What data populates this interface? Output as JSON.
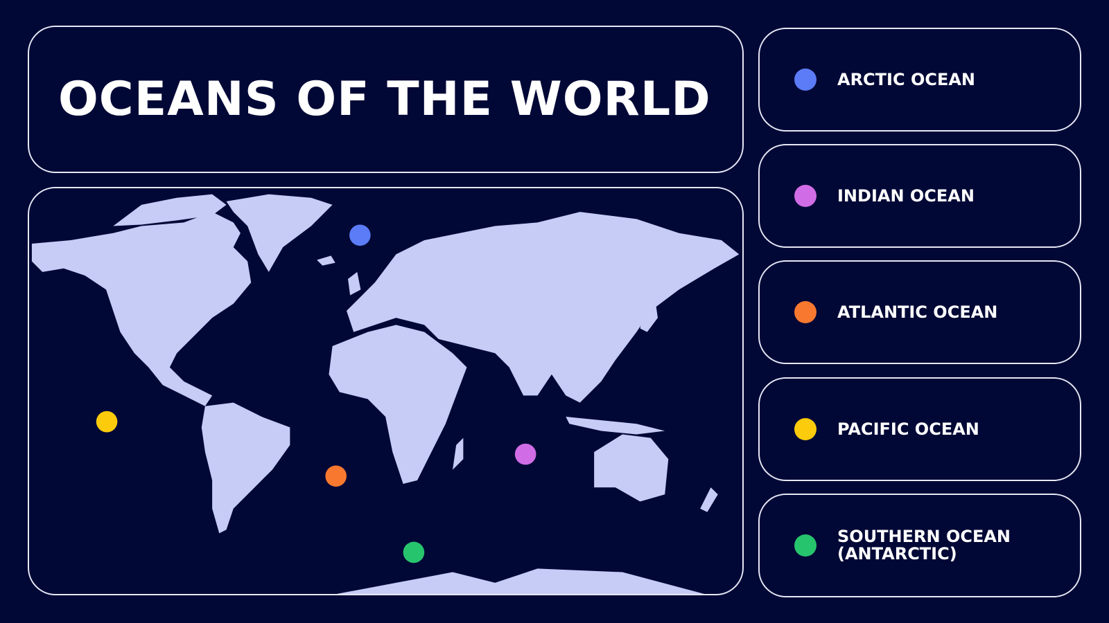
{
  "title": "OCEANS OF THE WORLD",
  "colors": {
    "background": "#020836",
    "land": "#c7ccf6",
    "border": "#e6e8f5"
  },
  "oceans": [
    {
      "label": "ARCTIC OCEAN",
      "color": "#5b7cf6"
    },
    {
      "label": "INDIAN OCEAN",
      "color": "#d06de6"
    },
    {
      "label": "ATLANTIC OCEAN",
      "color": "#f9782f"
    },
    {
      "label": "PACIFIC OCEAN",
      "color": "#fccb0b"
    },
    {
      "label": "SOUTHERN OCEAN\n(ANTARCTIC)",
      "color": "#27c46e"
    }
  ]
}
